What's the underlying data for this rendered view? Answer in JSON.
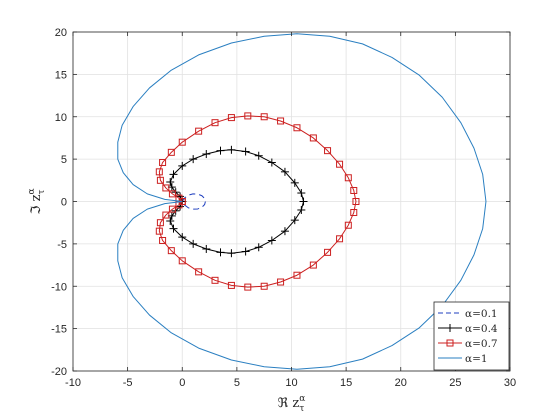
{
  "chart_data": {
    "type": "line",
    "title": "",
    "xlabel": "ℜ z",
    "ylabel": "ℑ z",
    "label_superscript": "α",
    "label_subscript": "τ",
    "xlim": [
      -10,
      30
    ],
    "ylim": [
      -20,
      20
    ],
    "xticks": [
      -10,
      -5,
      0,
      5,
      10,
      15,
      20,
      25,
      30
    ],
    "yticks": [
      -20,
      -15,
      -10,
      -5,
      0,
      5,
      10,
      15,
      20
    ],
    "xtick_labels": [
      "-10",
      "-5",
      "0",
      "5",
      "10",
      "15",
      "20",
      "25",
      "30"
    ],
    "ytick_labels": [
      "-20",
      "-15",
      "-10",
      "-5",
      "0",
      "5",
      "10",
      "15",
      "20"
    ],
    "grid": true,
    "legend_position": "bottom-right",
    "series": [
      {
        "name": "α=0.1",
        "color": "#1f3fbf",
        "line_style": "dashed",
        "marker": "none",
        "points": [
          [
            0.0,
            0.0
          ],
          [
            0.22,
            0.42
          ],
          [
            0.55,
            0.74
          ],
          [
            0.98,
            0.9
          ],
          [
            1.42,
            0.88
          ],
          [
            1.8,
            0.68
          ],
          [
            2.05,
            0.35
          ],
          [
            2.12,
            0.0
          ],
          [
            2.05,
            -0.35
          ],
          [
            1.8,
            -0.68
          ],
          [
            1.42,
            -0.88
          ],
          [
            0.98,
            -0.9
          ],
          [
            0.55,
            -0.74
          ],
          [
            0.22,
            -0.42
          ],
          [
            0.0,
            0.0
          ]
        ]
      },
      {
        "name": "α=0.4",
        "color": "#000000",
        "line_style": "solid",
        "marker": "plus",
        "points": [
          [
            0.0,
            0.0
          ],
          [
            -0.2,
            0.6
          ],
          [
            -0.6,
            1.1
          ],
          [
            -0.95,
            1.7
          ],
          [
            -1.1,
            2.3
          ],
          [
            -0.8,
            3.2
          ],
          [
            0.0,
            4.2
          ],
          [
            1.0,
            5.0
          ],
          [
            2.2,
            5.6
          ],
          [
            3.5,
            6.0
          ],
          [
            4.5,
            6.1
          ],
          [
            5.8,
            5.9
          ],
          [
            7.0,
            5.4
          ],
          [
            8.2,
            4.6
          ],
          [
            9.4,
            3.5
          ],
          [
            10.3,
            2.2
          ],
          [
            10.9,
            1.0
          ],
          [
            11.1,
            0.0
          ],
          [
            10.9,
            -1.0
          ],
          [
            10.3,
            -2.2
          ],
          [
            9.4,
            -3.5
          ],
          [
            8.2,
            -4.6
          ],
          [
            7.0,
            -5.4
          ],
          [
            5.8,
            -5.9
          ],
          [
            4.5,
            -6.1
          ],
          [
            3.5,
            -6.0
          ],
          [
            2.2,
            -5.6
          ],
          [
            1.0,
            -5.0
          ],
          [
            0.0,
            -4.2
          ],
          [
            -0.8,
            -3.2
          ],
          [
            -1.1,
            -2.3
          ],
          [
            -0.95,
            -1.7
          ],
          [
            -0.6,
            -1.1
          ],
          [
            -0.2,
            -0.6
          ],
          [
            0.0,
            0.0
          ]
        ]
      },
      {
        "name": "α=0.7",
        "color": "#cc1f1f",
        "line_style": "solid",
        "marker": "square",
        "points": [
          [
            0.0,
            0.0
          ],
          [
            -0.3,
            0.4
          ],
          [
            -0.9,
            0.9
          ],
          [
            -1.5,
            1.6
          ],
          [
            -2.0,
            2.5
          ],
          [
            -2.1,
            3.5
          ],
          [
            -1.8,
            4.6
          ],
          [
            -1.0,
            5.8
          ],
          [
            0.0,
            7.0
          ],
          [
            1.5,
            8.3
          ],
          [
            3.0,
            9.3
          ],
          [
            4.5,
            9.9
          ],
          [
            6.0,
            10.1
          ],
          [
            7.5,
            10.0
          ],
          [
            9.0,
            9.5
          ],
          [
            10.5,
            8.7
          ],
          [
            12.0,
            7.5
          ],
          [
            13.3,
            6.0
          ],
          [
            14.4,
            4.4
          ],
          [
            15.2,
            2.8
          ],
          [
            15.7,
            1.3
          ],
          [
            15.9,
            0.0
          ],
          [
            15.7,
            -1.3
          ],
          [
            15.2,
            -2.8
          ],
          [
            14.4,
            -4.4
          ],
          [
            13.3,
            -6.0
          ],
          [
            12.0,
            -7.5
          ],
          [
            10.5,
            -8.7
          ],
          [
            9.0,
            -9.5
          ],
          [
            7.5,
            -10.0
          ],
          [
            6.0,
            -10.1
          ],
          [
            4.5,
            -9.9
          ],
          [
            3.0,
            -9.3
          ],
          [
            1.5,
            -8.3
          ],
          [
            0.0,
            -7.0
          ],
          [
            -1.0,
            -5.8
          ],
          [
            -1.8,
            -4.6
          ],
          [
            -2.1,
            -3.5
          ],
          [
            -2.0,
            -2.5
          ],
          [
            -1.5,
            -1.6
          ],
          [
            -0.9,
            -0.9
          ],
          [
            -0.3,
            -0.4
          ],
          [
            0.0,
            0.0
          ]
        ]
      },
      {
        "name": "α=1",
        "color": "#2a7fc1",
        "line_style": "solid",
        "marker": "none",
        "points": [
          [
            0.0,
            0.0
          ],
          [
            -1.6,
            0.25
          ],
          [
            -3.2,
            0.9
          ],
          [
            -4.5,
            2.0
          ],
          [
            -5.4,
            3.4
          ],
          [
            -5.9,
            5.0
          ],
          [
            -5.9,
            7.0
          ],
          [
            -5.5,
            9.0
          ],
          [
            -4.5,
            11.2
          ],
          [
            -3.0,
            13.4
          ],
          [
            -1.0,
            15.5
          ],
          [
            1.5,
            17.3
          ],
          [
            4.5,
            18.7
          ],
          [
            7.5,
            19.5
          ],
          [
            10.5,
            19.8
          ],
          [
            13.5,
            19.5
          ],
          [
            16.5,
            18.6
          ],
          [
            19.2,
            17.0
          ],
          [
            21.7,
            14.9
          ],
          [
            23.8,
            12.3
          ],
          [
            25.5,
            9.3
          ],
          [
            26.7,
            6.3
          ],
          [
            27.5,
            3.2
          ],
          [
            27.8,
            0.0
          ],
          [
            27.5,
            -3.2
          ],
          [
            26.7,
            -6.3
          ],
          [
            25.5,
            -9.3
          ],
          [
            23.8,
            -12.3
          ],
          [
            21.7,
            -14.9
          ],
          [
            19.2,
            -17.0
          ],
          [
            16.5,
            -18.6
          ],
          [
            13.5,
            -19.5
          ],
          [
            10.5,
            -19.8
          ],
          [
            7.5,
            -19.5
          ],
          [
            4.5,
            -18.7
          ],
          [
            1.5,
            -17.3
          ],
          [
            -1.0,
            -15.5
          ],
          [
            -3.0,
            -13.4
          ],
          [
            -4.5,
            -11.2
          ],
          [
            -5.5,
            -9.0
          ],
          [
            -5.9,
            -7.0
          ],
          [
            -5.9,
            -5.0
          ],
          [
            -5.4,
            -3.4
          ],
          [
            -4.5,
            -2.0
          ],
          [
            -3.2,
            -0.9
          ],
          [
            -1.6,
            -0.25
          ],
          [
            0.0,
            0.0
          ]
        ]
      }
    ]
  }
}
